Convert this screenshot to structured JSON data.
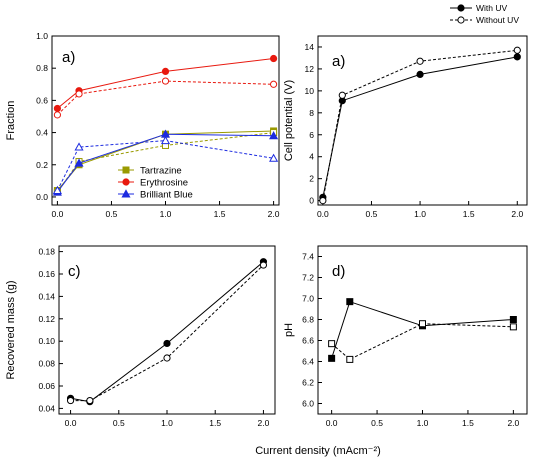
{
  "figure": {
    "xlabel_shared": "Current density (mAcm⁻²)"
  },
  "chart_data": [
    {
      "type": "line",
      "panel_label": "a)",
      "title": "",
      "xlabel": "",
      "ylabel": "Fraction",
      "xlim": [
        -0.05,
        2.05
      ],
      "ylim": [
        -0.05,
        1.0
      ],
      "xticks": [
        0.0,
        0.5,
        1.0,
        1.5,
        2.0
      ],
      "yticks": [
        0.0,
        0.2,
        0.4,
        0.6,
        0.8,
        1.0
      ],
      "xtick_labels": [
        "0.0",
        "0.5",
        "1.0",
        "1.5",
        "2.0"
      ],
      "ytick_labels": [
        "0.0",
        "0.2",
        "0.4",
        "0.6",
        "0.8",
        "1.0"
      ],
      "legend_position": "lower-middle",
      "series": [
        {
          "name": "Tartrazine",
          "color": "#9a9a00",
          "marker": "square",
          "fill": "filled",
          "dash": "solid",
          "x": [
            0.0,
            0.2,
            1.0,
            2.0
          ],
          "y": [
            0.04,
            0.2,
            0.39,
            0.41
          ]
        },
        {
          "name": "",
          "color": "#9a9a00",
          "marker": "square",
          "fill": "open",
          "dash": "dashed",
          "x": [
            0.0,
            0.2,
            1.0,
            2.0
          ],
          "y": [
            0.03,
            0.22,
            0.32,
            0.4
          ]
        },
        {
          "name": "Erythrosine",
          "color": "#e8190f",
          "marker": "circle",
          "fill": "filled",
          "dash": "solid",
          "x": [
            0.0,
            0.2,
            1.0,
            2.0
          ],
          "y": [
            0.55,
            0.66,
            0.78,
            0.86
          ]
        },
        {
          "name": "",
          "color": "#e8190f",
          "marker": "circle",
          "fill": "open",
          "dash": "dashed",
          "x": [
            0.0,
            0.2,
            1.0,
            2.0
          ],
          "y": [
            0.51,
            0.64,
            0.72,
            0.7
          ]
        },
        {
          "name": "Brilliant Blue",
          "color": "#1c2be0",
          "marker": "triangle",
          "fill": "filled",
          "dash": "solid",
          "x": [
            0.0,
            0.2,
            1.0,
            2.0
          ],
          "y": [
            0.03,
            0.21,
            0.39,
            0.38
          ]
        },
        {
          "name": "",
          "color": "#1c2be0",
          "marker": "triangle",
          "fill": "open",
          "dash": "dashed",
          "x": [
            0.0,
            0.2,
            1.0,
            2.0
          ],
          "y": [
            0.04,
            0.31,
            0.35,
            0.24
          ]
        }
      ]
    },
    {
      "type": "line",
      "panel_label": "a)",
      "title": "",
      "xlabel": "",
      "ylabel": "Cell potential (V)",
      "xlim": [
        -0.05,
        2.1
      ],
      "ylim": [
        -0.4,
        15.0
      ],
      "xticks": [
        0.0,
        0.5,
        1.0,
        1.5,
        2.0
      ],
      "yticks": [
        0,
        2,
        4,
        6,
        8,
        10,
        12,
        14
      ],
      "xtick_labels": [
        "0.0",
        "0.5",
        "1.0",
        "1.5",
        "2.0"
      ],
      "ytick_labels": [
        "0",
        "2",
        "4",
        "6",
        "8",
        "10",
        "12",
        "14"
      ],
      "legend_position": "above-top-right",
      "series": [
        {
          "name": "With UV",
          "color": "#000000",
          "marker": "circle",
          "fill": "filled",
          "dash": "solid",
          "x": [
            0.0,
            0.2,
            1.0,
            2.0
          ],
          "y": [
            0.3,
            9.1,
            11.5,
            13.1
          ]
        },
        {
          "name": "Without UV",
          "color": "#000000",
          "marker": "circle",
          "fill": "open",
          "dash": "dashed",
          "x": [
            0.0,
            0.2,
            1.0,
            2.0
          ],
          "y": [
            0.0,
            9.6,
            12.7,
            13.7
          ]
        }
      ]
    },
    {
      "type": "line",
      "panel_label": "c)",
      "title": "",
      "xlabel": "",
      "ylabel": "Recovered mass (g)",
      "xlim": [
        -0.12,
        2.12
      ],
      "ylim": [
        0.035,
        0.185
      ],
      "xticks": [
        0.0,
        0.5,
        1.0,
        1.5,
        2.0
      ],
      "yticks": [
        0.04,
        0.06,
        0.08,
        0.1,
        0.12,
        0.14,
        0.16,
        0.18
      ],
      "xtick_labels": [
        "0.0",
        "0.5",
        "1.0",
        "1.5",
        "2.0"
      ],
      "ytick_labels": [
        "0.04",
        "0.06",
        "0.08",
        "0.10",
        "0.12",
        "0.14",
        "0.16",
        "0.18"
      ],
      "legend_position": "none",
      "series": [
        {
          "name": "",
          "color": "#000000",
          "marker": "circle",
          "fill": "filled",
          "dash": "solid",
          "x": [
            0.0,
            0.2,
            1.0,
            2.0
          ],
          "y": [
            0.049,
            0.046,
            0.098,
            0.171
          ]
        },
        {
          "name": "",
          "color": "#000000",
          "marker": "circle",
          "fill": "open",
          "dash": "dashed",
          "x": [
            0.0,
            0.2,
            1.0,
            2.0
          ],
          "y": [
            0.047,
            0.047,
            0.085,
            0.168
          ]
        }
      ]
    },
    {
      "type": "line",
      "panel_label": "d)",
      "title": "",
      "xlabel": "",
      "ylabel": "pH",
      "xlim": [
        -0.15,
        2.15
      ],
      "ylim": [
        5.9,
        7.5
      ],
      "xticks": [
        0.0,
        0.5,
        1.0,
        1.5,
        2.0
      ],
      "yticks": [
        6.0,
        6.2,
        6.4,
        6.6,
        6.8,
        7.0,
        7.2,
        7.4
      ],
      "xtick_labels": [
        "0.0",
        "0.5",
        "1.0",
        "1.5",
        "2.0"
      ],
      "ytick_labels": [
        "6.0",
        "6.2",
        "6.4",
        "6.6",
        "6.8",
        "7.0",
        "7.2",
        "7.4"
      ],
      "legend_position": "none",
      "series": [
        {
          "name": "",
          "color": "#000000",
          "marker": "square",
          "fill": "filled",
          "dash": "solid",
          "x": [
            0.0,
            0.2,
            1.0,
            2.0
          ],
          "y": [
            6.43,
            6.97,
            6.74,
            6.8
          ]
        },
        {
          "name": "",
          "color": "#000000",
          "marker": "square",
          "fill": "open",
          "dash": "dashed",
          "x": [
            0.0,
            0.2,
            1.0,
            2.0
          ],
          "y": [
            6.57,
            6.42,
            6.76,
            6.73
          ]
        }
      ]
    }
  ]
}
